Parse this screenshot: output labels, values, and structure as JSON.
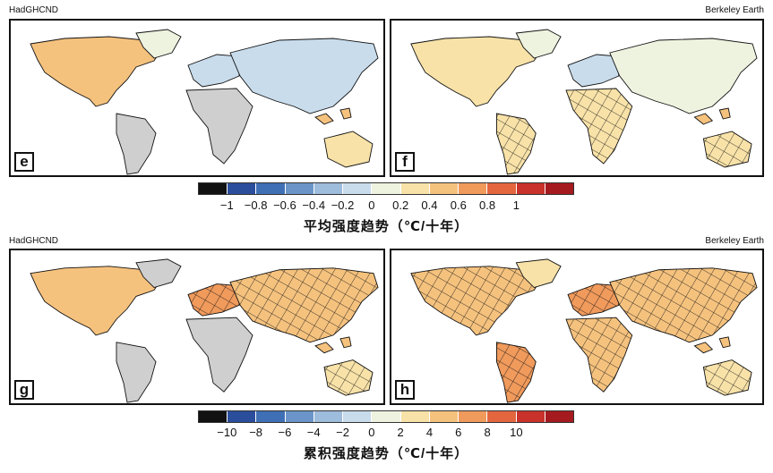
{
  "top": {
    "left_source": "HadGHCND",
    "right_source": "Berkeley Earth",
    "panel_left_label": "e",
    "panel_right_label": "f",
    "colorbar_ticks": [
      "−1",
      "−0.8",
      "−0.6",
      "−0.4",
      "−0.2",
      "0",
      "0.2",
      "0.4",
      "0.6",
      "0.8",
      "1"
    ],
    "colorbar_title": "平均强度趋势（℃/十年）"
  },
  "bottom": {
    "left_source": "HadGHCND",
    "right_source": "Berkeley Earth",
    "panel_left_label": "g",
    "panel_right_label": "h",
    "colorbar_ticks": [
      "−10",
      "−8",
      "−6",
      "−4",
      "−2",
      "0",
      "2",
      "4",
      "6",
      "8",
      "10"
    ],
    "colorbar_title": "累积强度趋势（℃/十年）"
  },
  "colors": {
    "scale": [
      "#111111",
      "#2b4e9c",
      "#3f6fb5",
      "#6b95c8",
      "#9ebcdc",
      "#c8dcec",
      "#eef3e0",
      "#f8e2a8",
      "#f5c27e",
      "#f09a5c",
      "#e3663f",
      "#c8322a",
      "#a51a1f"
    ],
    "land_no_data": "#cfcfcf",
    "hatch": "#111111"
  }
}
